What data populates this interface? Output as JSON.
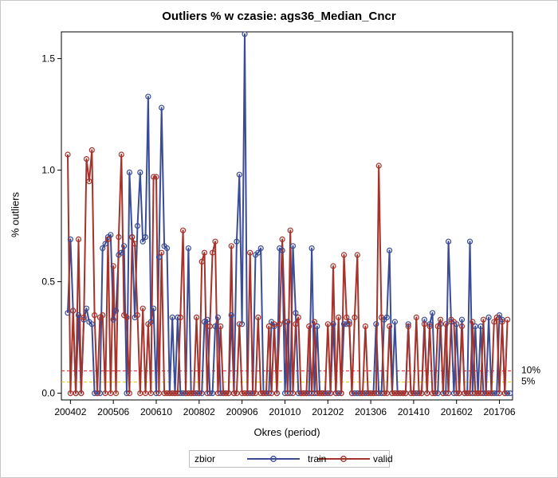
{
  "chart_data": {
    "type": "line",
    "title": "Outliers % w czasie: ags36_Median_Cncr",
    "xlabel": "Okres (period)",
    "ylabel": "% outliers",
    "ylim": [
      -0.03,
      1.62
    ],
    "y_ticks": [
      "0.0",
      "0.5",
      "1.0",
      "1.5"
    ],
    "x_ticks": [
      "200402",
      "200506",
      "200610",
      "200802",
      "200906",
      "201010",
      "201202",
      "201306",
      "201410",
      "201602",
      "201706"
    ],
    "x_start": "2004-01",
    "legend": {
      "title": "zbior",
      "position": "bottom"
    },
    "reference_lines": [
      {
        "label": "10%",
        "value": 0.1,
        "color": "#e41a1c"
      },
      {
        "label": "5%",
        "value": 0.05,
        "color": "#e6c200"
      }
    ],
    "series": [
      {
        "name": "train",
        "color": "#3b4c96",
        "values": [
          0.36,
          0.69,
          0.37,
          0.0,
          0.35,
          0.0,
          0.33,
          0.38,
          0.32,
          0.31,
          0.0,
          0.0,
          0.0,
          0.65,
          0.67,
          0.7,
          0.71,
          0.33,
          0.37,
          0.62,
          0.63,
          0.66,
          0.0,
          0.99,
          0.7,
          0.34,
          0.75,
          0.99,
          0.68,
          0.7,
          1.33,
          0.32,
          0.38,
          0.0,
          0.61,
          1.28,
          0.66,
          0.65,
          0.0,
          0.34,
          0.0,
          0.34,
          0.0,
          0.0,
          0.0,
          0.65,
          0.0,
          0.0,
          0.0,
          0.0,
          0.0,
          0.32,
          0.33,
          0.0,
          0.0,
          0.3,
          0.34,
          0.0,
          0.0,
          0.0,
          0.0,
          0.35,
          0.0,
          0.68,
          0.98,
          0.31,
          1.61,
          0.0,
          0.0,
          0.0,
          0.62,
          0.63,
          0.65,
          0.0,
          0.0,
          0.0,
          0.32,
          0.3,
          0.0,
          0.65,
          0.64,
          0.0,
          0.32,
          0.0,
          0.66,
          0.36,
          0.0,
          0.0,
          0.0,
          0.0,
          0.0,
          0.65,
          0.0,
          0.3,
          0.0,
          0.0,
          0.0,
          0.0,
          0.0,
          0.31,
          0.0,
          0.0,
          0.0,
          0.31,
          0.31,
          0.32,
          0.0,
          0.0,
          0.0,
          0.0,
          0.0,
          0.0,
          0.0,
          0.0,
          0.0,
          0.31,
          0.0,
          0.0,
          0.33,
          0.34,
          0.64,
          0.0,
          0.32,
          0.0,
          0.0,
          0.0,
          0.0,
          0.31,
          0.0,
          0.0,
          0.0,
          0.0,
          0.0,
          0.33,
          0.0,
          0.31,
          0.36,
          0.0,
          0.0,
          0.31,
          0.0,
          0.0,
          0.68,
          0.32,
          0.0,
          0.31,
          0.0,
          0.33,
          0.0,
          0.0,
          0.68,
          0.0,
          0.3,
          0.0,
          0.3,
          0.0,
          0.0,
          0.34,
          0.0,
          0.0,
          0.0,
          0.35,
          0.33,
          0.0,
          0.0,
          0.0
        ]
      },
      {
        "name": "valid",
        "color": "#a5322b",
        "values": [
          1.07,
          0.0,
          0.37,
          0.0,
          0.69,
          0.0,
          0.34,
          1.05,
          0.95,
          1.09,
          0.35,
          0.0,
          0.34,
          0.35,
          0.0,
          0.69,
          0.0,
          0.57,
          0.0,
          0.7,
          1.07,
          0.35,
          0.34,
          0.0,
          0.7,
          0.67,
          0.35,
          0.0,
          0.38,
          0.0,
          0.31,
          0.0,
          0.97,
          0.97,
          0.0,
          0.63,
          0.0,
          0.0,
          0.0,
          0.0,
          0.0,
          0.0,
          0.34,
          0.73,
          0.0,
          0.0,
          0.0,
          0.0,
          0.34,
          0.0,
          0.59,
          0.63,
          0.0,
          0.3,
          0.63,
          0.68,
          0.0,
          0.3,
          0.0,
          0.0,
          0.0,
          0.66,
          0.0,
          0.0,
          0.31,
          0.0,
          0.0,
          0.0,
          0.63,
          0.0,
          0.0,
          0.34,
          0.0,
          0.0,
          0.0,
          0.3,
          0.0,
          0.31,
          0.0,
          0.31,
          0.69,
          0.32,
          0.0,
          0.73,
          0.0,
          0.31,
          0.34,
          0.0,
          0.0,
          0.0,
          0.3,
          0.0,
          0.32,
          0.0,
          0.0,
          0.0,
          0.0,
          0.31,
          0.0,
          0.57,
          0.0,
          0.34,
          0.0,
          0.62,
          0.34,
          0.31,
          0.0,
          0.34,
          0.62,
          0.0,
          0.0,
          0.3,
          0.0,
          0.0,
          0.0,
          0.0,
          1.02,
          0.34,
          0.0,
          0.0,
          0.3,
          0.0,
          0.0,
          0.0,
          0.0,
          0.0,
          0.0,
          0.3,
          0.0,
          0.0,
          0.34,
          0.0,
          0.0,
          0.31,
          0.0,
          0.3,
          0.0,
          0.0,
          0.3,
          0.33,
          0.0,
          0.31,
          0.0,
          0.33,
          0.32,
          0.0,
          0.0,
          0.3,
          0.0,
          0.0,
          0.0,
          0.32,
          0.0,
          0.0,
          0.0,
          0.33,
          0.0,
          0.0,
          0.0,
          0.32,
          0.34,
          0.0,
          0.32,
          0.0,
          0.33
        ]
      }
    ]
  }
}
